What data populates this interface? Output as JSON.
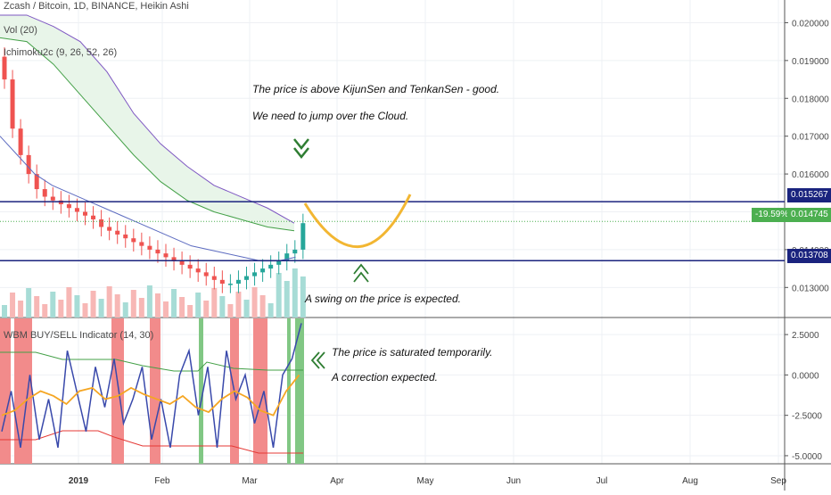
{
  "header": {
    "title": "Zcash / Bitcoin, 1D, BINANCE, Heikin Ashi",
    "vol": "Vol (20)",
    "ichimoku": "Ichimoku2c (9, 26, 52, 26)",
    "wbm": "WBM BUY/SELL Indicator (14, 30)"
  },
  "annotations": {
    "note1": "The price is above KijunSen and TenkanSen - good.",
    "note2": "We need to jump over the Cloud.",
    "note3": "A swing on the price is expected.",
    "note4": "The price is saturated temporarily.",
    "note5": "A correction expected."
  },
  "price_tags": {
    "resistance": "0.015267",
    "current_change": "-19.59%",
    "current": "0.014745",
    "support": "0.013708"
  },
  "colors": {
    "up": "#26a69a",
    "down": "#ef5350",
    "line_blue": "#1a237e",
    "tag_green": "#4caf50",
    "cloud": "#e8f5e9",
    "orange": "#f5a623",
    "arrow": "#2e7d32"
  },
  "chart_data": [
    {
      "type": "candlestick",
      "title": "Zcash / Bitcoin, 1D, BINANCE, Heikin Ashi",
      "yticks": [
        "0.020000",
        "0.019000",
        "0.018000",
        "0.017000",
        "0.016000",
        "0.015000",
        "0.014000",
        "0.013000"
      ],
      "xticks": [
        "2019",
        "Feb",
        "Mar",
        "Apr",
        "May",
        "Jun",
        "Jul",
        "Aug",
        "Sep"
      ],
      "ylim": [
        0.0123,
        0.0206
      ],
      "series": [
        {
          "name": "Heikin Ashi",
          "ohlc_close": [
            0.0185,
            0.0172,
            0.0165,
            0.016,
            0.0156,
            0.0154,
            0.0153,
            0.0152,
            0.0151,
            0.015,
            0.0149,
            0.0148,
            0.0146,
            0.0145,
            0.0144,
            0.0143,
            0.0142,
            0.0141,
            0.014,
            0.0139,
            0.0138,
            0.0137,
            0.0136,
            0.0135,
            0.0134,
            0.0133,
            0.0132,
            0.0131,
            0.0131,
            0.0132,
            0.0133,
            0.0134,
            0.0135,
            0.0136,
            0.0137,
            0.0139,
            0.014,
            0.0147
          ]
        },
        {
          "name": "Kijun-sen",
          "values": [
            0.017,
            0.0165,
            0.016,
            0.0157,
            0.0155,
            0.0153,
            0.0151,
            0.0149,
            0.0147,
            0.0145,
            0.0143,
            0.0141,
            0.014,
            0.0139,
            0.0138,
            0.0137,
            0.0137,
            0.0138
          ]
        },
        {
          "name": "Senkou Span A",
          "values": [
            0.0196,
            0.0195,
            0.0189,
            0.0181,
            0.0173,
            0.0165,
            0.0158,
            0.0153,
            0.015,
            0.0148,
            0.0146,
            0.0145
          ]
        },
        {
          "name": "Senkou Span B",
          "values": [
            0.0202,
            0.0202,
            0.0199,
            0.0195,
            0.0187,
            0.0176,
            0.0168,
            0.0162,
            0.0157,
            0.0154,
            0.0151,
            0.0147
          ]
        }
      ]
    },
    {
      "type": "line",
      "title": "WBM BUY/SELL Indicator (14, 30)",
      "yticks": [
        "2.5000",
        "0.0000",
        "-2.5000",
        "-5.0000"
      ],
      "ylim": [
        -5.5,
        3.5
      ],
      "series": [
        {
          "name": "WBM",
          "values": [
            -3.5,
            -1.0,
            -4.5,
            0.0,
            -4.0,
            -1.5,
            -4.5,
            1.5,
            -1.0,
            -3.5,
            0.5,
            -2.0,
            1.0,
            -3.0,
            -1.5,
            0.5,
            -4.0,
            -1.5,
            -4.5,
            0.0,
            1.5,
            -2.5,
            0.5,
            -4.5,
            1.5,
            -1.5,
            0.0,
            -3.0,
            -1.0,
            -4.5,
            0.0,
            1.0,
            3.2
          ]
        },
        {
          "name": "Signal",
          "values": [
            -2.5,
            -2.2,
            -1.5,
            -1.0,
            -1.3,
            -1.8,
            -1.0,
            -0.8,
            -1.5,
            -1.3,
            -0.8,
            -1.2,
            -1.5,
            -1.8,
            -1.3,
            -2.0,
            -2.3,
            -1.5,
            -1.0,
            -1.4,
            -2.2,
            -2.5,
            -1.0,
            0.0
          ]
        }
      ]
    }
  ]
}
